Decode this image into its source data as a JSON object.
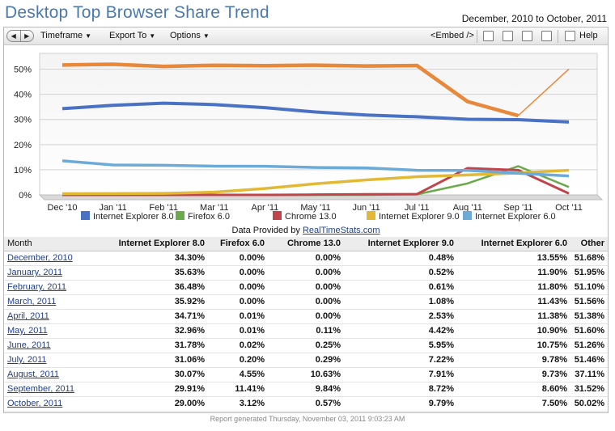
{
  "header": {
    "title": "Desktop Top Browser Share Trend",
    "date_range": "December, 2010 to October, 2011"
  },
  "toolbar": {
    "back_glyph": "◀",
    "forward_glyph": "▶",
    "timeframe_label": "Timeframe",
    "export_label": "Export To",
    "options_label": "Options",
    "embed_label": "<Embed />",
    "help_label": "Help",
    "icons": [
      "columns-icon",
      "print-preview-icon",
      "printer-icon",
      "page-icon",
      "help-icon"
    ]
  },
  "chart_data": {
    "type": "line",
    "x": [
      "Dec '10",
      "Jan '11",
      "Feb '11",
      "Mar '11",
      "Apr '11",
      "May '11",
      "Jun '11",
      "Jul '11",
      "Aug '11",
      "Sep '11",
      "Oct '11"
    ],
    "yticks": [
      "0%",
      "10%",
      "20%",
      "30%",
      "40%",
      "50%"
    ],
    "ylim": [
      0,
      55
    ],
    "grid": true,
    "legend_position": "bottom",
    "series": [
      {
        "name": "Internet Explorer 8.0",
        "color": "#4a72c4",
        "values": [
          34.3,
          35.63,
          36.48,
          35.92,
          34.71,
          32.96,
          31.78,
          31.06,
          30.07,
          29.91,
          29.0
        ]
      },
      {
        "name": "Firefox 6.0",
        "color": "#6aaa4c",
        "values": [
          0.0,
          0.0,
          0.0,
          0.0,
          0.01,
          0.01,
          0.02,
          0.2,
          4.55,
          11.41,
          3.12
        ]
      },
      {
        "name": "Chrome 13.0",
        "color": "#c0454a",
        "values": [
          0.0,
          0.0,
          0.0,
          0.0,
          0.0,
          0.11,
          0.25,
          0.29,
          10.63,
          9.84,
          0.57
        ]
      },
      {
        "name": "Internet Explorer 9.0",
        "color": "#e2b935",
        "values": [
          0.48,
          0.52,
          0.61,
          1.08,
          2.53,
          4.42,
          5.95,
          7.22,
          7.91,
          8.72,
          9.79
        ]
      },
      {
        "name": "Internet Explorer 6.0",
        "color": "#6cabd8",
        "values": [
          13.55,
          11.9,
          11.8,
          11.43,
          11.38,
          10.9,
          10.75,
          9.78,
          9.73,
          8.6,
          7.5
        ]
      },
      {
        "color": "#e8883a",
        "values": [
          51.68,
          51.95,
          51.1,
          51.56,
          51.38,
          51.6,
          51.26,
          51.46,
          37.11,
          31.52,
          50.02
        ]
      }
    ]
  },
  "provided": {
    "prefix": "Data Provided by ",
    "link": "RealTimeStats.com"
  },
  "table": {
    "headers": [
      "Month",
      "Internet Explorer 8.0",
      "Firefox 6.0",
      "Chrome 13.0",
      "Internet Explorer 9.0",
      "Internet Explorer 6.0",
      "Other"
    ],
    "rows": [
      [
        "December, 2010",
        "34.30%",
        "0.00%",
        "0.00%",
        "0.48%",
        "13.55%",
        "51.68%"
      ],
      [
        "January, 2011",
        "35.63%",
        "0.00%",
        "0.00%",
        "0.52%",
        "11.90%",
        "51.95%"
      ],
      [
        "February, 2011",
        "36.48%",
        "0.00%",
        "0.00%",
        "0.61%",
        "11.80%",
        "51.10%"
      ],
      [
        "March, 2011",
        "35.92%",
        "0.00%",
        "0.00%",
        "1.08%",
        "11.43%",
        "51.56%"
      ],
      [
        "April, 2011",
        "34.71%",
        "0.01%",
        "0.00%",
        "2.53%",
        "11.38%",
        "51.38%"
      ],
      [
        "May, 2011",
        "32.96%",
        "0.01%",
        "0.11%",
        "4.42%",
        "10.90%",
        "51.60%"
      ],
      [
        "June, 2011",
        "31.78%",
        "0.02%",
        "0.25%",
        "5.95%",
        "10.75%",
        "51.26%"
      ],
      [
        "July, 2011",
        "31.06%",
        "0.20%",
        "0.29%",
        "7.22%",
        "9.78%",
        "51.46%"
      ],
      [
        "August, 2011",
        "30.07%",
        "4.55%",
        "10.63%",
        "7.91%",
        "9.73%",
        "37.11%"
      ],
      [
        "September, 2011",
        "29.91%",
        "11.41%",
        "9.84%",
        "8.72%",
        "8.60%",
        "31.52%"
      ],
      [
        "October, 2011",
        "29.00%",
        "3.12%",
        "0.57%",
        "9.79%",
        "7.50%",
        "50.02%"
      ]
    ]
  },
  "footer": "Report generated Thursday, November 03, 2011 9:03:23 AM"
}
